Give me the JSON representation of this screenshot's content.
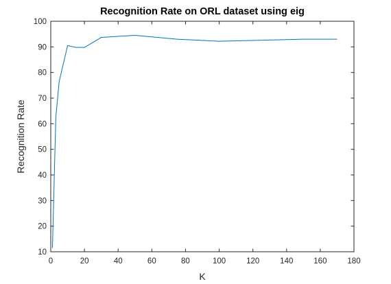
{
  "chart_data": {
    "type": "line",
    "title": "Recognition Rate on ORL dataset using eig",
    "xlabel": "K",
    "ylabel": "Recognition Rate",
    "xlim": [
      0,
      180
    ],
    "ylim": [
      10,
      100
    ],
    "xticks": [
      0,
      20,
      40,
      60,
      80,
      100,
      120,
      140,
      160,
      180
    ],
    "yticks": [
      10,
      20,
      30,
      40,
      50,
      60,
      70,
      80,
      90,
      100
    ],
    "grid": false,
    "box": true,
    "series": [
      {
        "color": "#0072BD",
        "x": [
          1,
          3,
          5,
          10,
          15,
          20,
          30,
          50,
          75,
          100,
          150,
          170
        ],
        "y": [
          11.5,
          62.5,
          76.5,
          90.5,
          89.8,
          89.8,
          93.7,
          94.5,
          93.0,
          92.2,
          93.0,
          93.0
        ]
      }
    ]
  }
}
